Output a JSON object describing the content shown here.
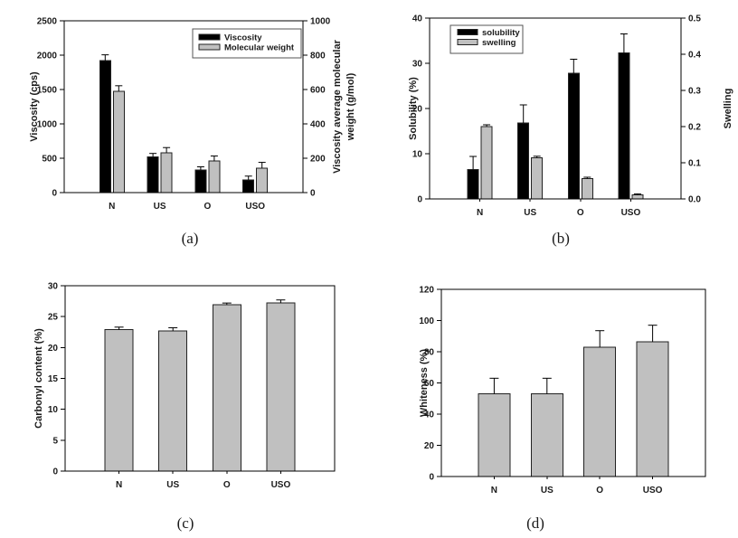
{
  "figure": {
    "background": "#ffffff",
    "bar_gray": "#c0c0c0",
    "bar_black": "#000000",
    "panel_count": 4
  },
  "chart_data": [
    {
      "id": "a",
      "type": "bar",
      "caption": "(a)",
      "categories": [
        "N",
        "US",
        "O",
        "USO"
      ],
      "left_axis": {
        "label": "Viscosity (cps)",
        "min": 0,
        "max": 2500,
        "step": 500,
        "decimals": 0
      },
      "right_axis": {
        "label": "Viscosity average molecular weight (g/mol)",
        "label_lines": [
          "Viscosity average molecular",
          "weight (g/mol)"
        ],
        "min": 0,
        "max": 1000,
        "step": 200,
        "decimals": 0
      },
      "series": [
        {
          "name": "Viscosity",
          "axis": "left",
          "color": "#000000",
          "values": [
            1920,
            520,
            330,
            185
          ],
          "errors": [
            85,
            50,
            45,
            55
          ]
        },
        {
          "name": "Molecular weight",
          "axis": "right",
          "color": "#c0c0c0",
          "values": [
            590,
            232,
            183,
            143
          ],
          "errors": [
            32,
            30,
            30,
            33
          ]
        }
      ],
      "legend": {
        "position": "top-right",
        "items": [
          "Viscosity",
          "Molecular weight"
        ]
      },
      "grid": false
    },
    {
      "id": "b",
      "type": "bar",
      "caption": "(b)",
      "categories": [
        "N",
        "US",
        "O",
        "USO"
      ],
      "left_axis": {
        "label": "Solubility (%)",
        "min": 0,
        "max": 40,
        "step": 10,
        "decimals": 0
      },
      "right_axis": {
        "label": "Swelling",
        "label_lines": [
          "Swelling"
        ],
        "min": 0,
        "max": 0.5,
        "step": 0.1,
        "decimals": 1
      },
      "series": [
        {
          "name": "solubility",
          "axis": "left",
          "color": "#000000",
          "values": [
            6.5,
            16.8,
            27.8,
            32.3
          ],
          "errors": [
            2.9,
            4.0,
            3.1,
            4.2
          ]
        },
        {
          "name": "swelling",
          "axis": "right",
          "color": "#c0c0c0",
          "values": [
            0.2,
            0.114,
            0.056,
            0.011
          ],
          "errors": [
            0.005,
            0.004,
            0.004,
            0.003
          ]
        }
      ],
      "legend": {
        "position": "top-left",
        "items": [
          "solubility",
          "swelling"
        ]
      },
      "grid": false
    },
    {
      "id": "c",
      "type": "bar",
      "caption": "(c)",
      "categories": [
        "N",
        "US",
        "O",
        "USO"
      ],
      "left_axis": {
        "label": "Carbonyl content (%)",
        "min": 0,
        "max": 30,
        "step": 5,
        "decimals": 0
      },
      "series": [
        {
          "name": "Carbonyl content",
          "axis": "left",
          "color": "#c0c0c0",
          "values": [
            22.9,
            22.7,
            26.9,
            27.2
          ],
          "errors": [
            0.4,
            0.5,
            0.3,
            0.5
          ]
        }
      ],
      "grid": false
    },
    {
      "id": "d",
      "type": "bar",
      "caption": "(d)",
      "categories": [
        "N",
        "US",
        "O",
        "USO"
      ],
      "left_axis": {
        "label": "Whiteness (%)",
        "min": 0,
        "max": 120,
        "step": 20,
        "decimals": 0
      },
      "series": [
        {
          "name": "Whiteness",
          "axis": "left",
          "color": "#c0c0c0",
          "values": [
            53,
            53,
            83,
            86.5
          ],
          "errors": [
            10,
            10,
            10.5,
            10.5
          ]
        }
      ],
      "grid": false
    }
  ]
}
